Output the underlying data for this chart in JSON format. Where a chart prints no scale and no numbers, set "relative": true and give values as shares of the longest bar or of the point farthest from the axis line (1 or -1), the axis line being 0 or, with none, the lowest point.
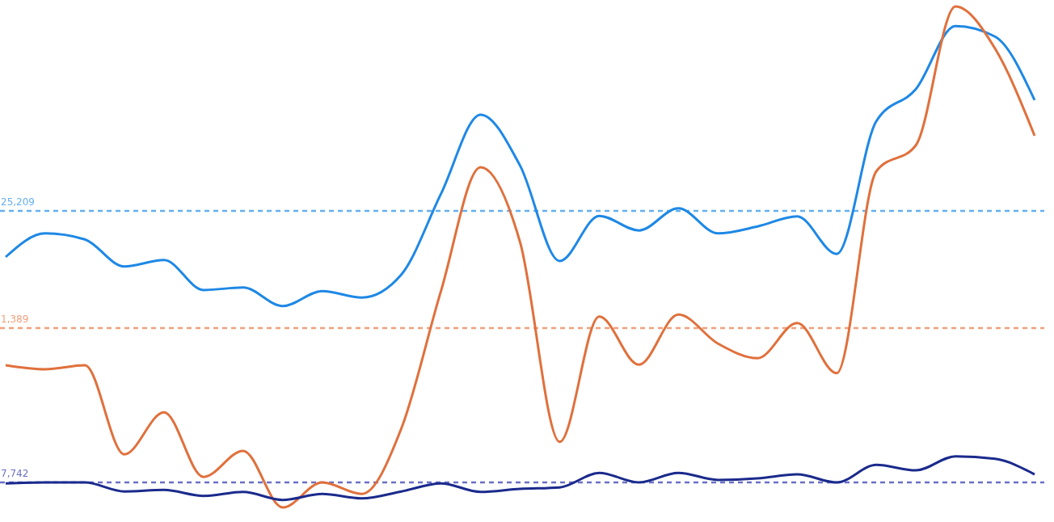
{
  "chart_data": {
    "type": "line",
    "relative": true,
    "categories": [
      null,
      null,
      null,
      null,
      null,
      null,
      null,
      null,
      null,
      null,
      null,
      null,
      null,
      null,
      null,
      null,
      null,
      null,
      null,
      null,
      null,
      null,
      null,
      null,
      null,
      null,
      null
    ],
    "series": [
      {
        "color": "#1e88e5",
        "values": [
          0.5,
          0.547,
          0.535,
          0.481,
          0.494,
          0.434,
          0.439,
          0.402,
          0.432,
          0.419,
          0.465,
          0.626,
          0.784,
          0.682,
          0.492,
          0.582,
          0.553,
          0.597,
          0.547,
          0.561,
          0.581,
          0.506,
          0.771,
          0.835,
          0.961,
          0.94,
          0.813
        ]
      },
      {
        "color": "#e0703c",
        "values": [
          0.284,
          0.276,
          0.284,
          0.106,
          0.19,
          0.061,
          0.113,
          0.0,
          0.05,
          0.027,
          0.158,
          0.432,
          0.679,
          0.529,
          0.131,
          0.381,
          0.285,
          0.385,
          0.327,
          0.298,
          0.368,
          0.268,
          0.671,
          0.723,
          1.0,
          0.916,
          0.742
        ]
      },
      {
        "color": "#1a2a8c",
        "values": [
          0.048,
          0.05,
          0.05,
          0.032,
          0.035,
          0.023,
          0.031,
          0.015,
          0.027,
          0.018,
          0.032,
          0.048,
          0.031,
          0.037,
          0.04,
          0.069,
          0.05,
          0.069,
          0.055,
          0.058,
          0.066,
          0.05,
          0.085,
          0.074,
          0.102,
          0.097,
          0.066
        ]
      }
    ],
    "ref_lines": [
      {
        "axis": "y",
        "value": 0.592,
        "color": "#64b0f0",
        "line_style": "dashed"
      },
      {
        "axis": "y",
        "value": 0.358,
        "color": "#f0a07c",
        "line_style": "dashed"
      },
      {
        "axis": "y",
        "value": 0.05,
        "color": "#6b70c4",
        "line_style": "dashed"
      }
    ],
    "annotations": [
      {
        "text": "25,209",
        "y": 0.592
      },
      {
        "text": "1,389",
        "y": 0.358
      },
      {
        "text": "7,742",
        "y": 0.05
      }
    ],
    "marker": "none",
    "line_style": "solid"
  }
}
